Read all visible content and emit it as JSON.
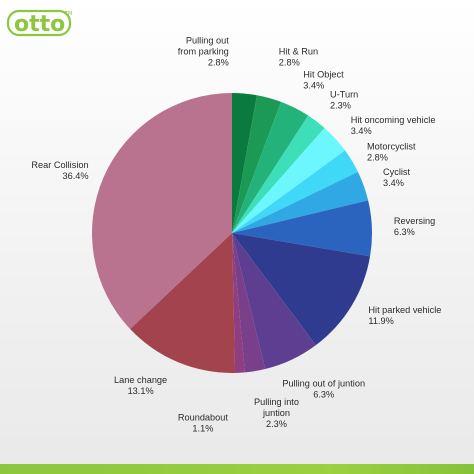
{
  "brand": {
    "name": "otto",
    "trademark": "TM",
    "color": "#8cc63f"
  },
  "chart_data": {
    "type": "pie",
    "title": "",
    "unit": "%",
    "slices": [
      {
        "name": "Pulling out from parking",
        "value": 2.8,
        "label": "2.8%",
        "color": "#0a7a3e",
        "label_lines": [
          "Pulling out",
          "from parking"
        ],
        "anchor": "end",
        "dx": -17,
        "dy": -36
      },
      {
        "name": "Hit & Run",
        "value": 2.8,
        "label": "2.8%",
        "color": "#1c9a55",
        "label_lines": [
          "Hit & Run"
        ],
        "anchor": "start",
        "dx": 6,
        "dy": -30
      },
      {
        "name": "Hit Object",
        "value": 3.4,
        "label": "3.4%",
        "color": "#23b37a",
        "label_lines": [
          "Hit Object"
        ],
        "anchor": "start",
        "dx": 2,
        "dy": -18
      },
      {
        "name": "U-Turn",
        "value": 2.3,
        "label": "2.3%",
        "color": "#3ddfb8",
        "label_lines": [
          "U-Turn"
        ],
        "anchor": "start",
        "dx": 5,
        "dy": -13
      },
      {
        "name": "Hit oncoming vehicle",
        "value": 3.4,
        "label": "3.4%",
        "color": "#6cf7ff",
        "label_lines": [
          "Hit oncoming vehicle"
        ],
        "anchor": "start",
        "dx": 5,
        "dy": -6
      },
      {
        "name": "Motorcyclist",
        "value": 2.8,
        "label": "2.8%",
        "color": "#3fd9f7",
        "label_lines": [
          "Motorcyclist"
        ],
        "anchor": "start",
        "dx": 3,
        "dy": -4
      },
      {
        "name": "Cyclist",
        "value": 3.4,
        "label": "3.4%",
        "color": "#2fa8e4",
        "label_lines": [
          "Cyclist"
        ],
        "anchor": "start",
        "dx": 6,
        "dy": -6
      },
      {
        "name": "Reversing",
        "value": 6.3,
        "label": "6.3%",
        "color": "#2b64bf",
        "label_lines": [
          "Reversing"
        ],
        "anchor": "start",
        "dx": 8,
        "dy": -4
      },
      {
        "name": "Hit parked vehicle",
        "value": 11.9,
        "label": "11.9%",
        "color": "#2f3b8f",
        "label_lines": [
          "Hit parked vehicle"
        ],
        "anchor": "start",
        "dx": 5,
        "dy": 0
      },
      {
        "name": "Pulling out of juntion",
        "value": 6.3,
        "label": "6.3%",
        "color": "#5e3e91",
        "label_lines": [
          "Pulling out of juntion"
        ],
        "anchor": "middle",
        "dx": 26,
        "dy": 14
      },
      {
        "name": "Pulling into juntion",
        "value": 2.3,
        "label": "2.3%",
        "color": "#7a3f8b",
        "label_lines": [
          "Pulling into",
          "juntion"
        ],
        "anchor": "middle",
        "dx": 19,
        "dy": 20
      },
      {
        "name": "Roundabout",
        "value": 1.1,
        "label": "1.1%",
        "color": "#8f3e7f",
        "label_lines": [
          "Roundabout"
        ],
        "anchor": "middle",
        "dx": -38,
        "dy": 34
      },
      {
        "name": "Lane change",
        "value": 13.1,
        "label": "13.1%",
        "color": "#a3434e",
        "label_lines": [
          "Lane change"
        ],
        "anchor": "middle",
        "dx": -32,
        "dy": 8
      },
      {
        "name": "Rear Collision",
        "value": 36.4,
        "label": "36.4%",
        "color": "#b9738f",
        "label_lines": [
          "Rear Collision"
        ],
        "anchor": "end",
        "dx": -2,
        "dy": -4
      }
    ],
    "start_angle_deg": 0,
    "direction": "clockwise",
    "legend": "none"
  }
}
